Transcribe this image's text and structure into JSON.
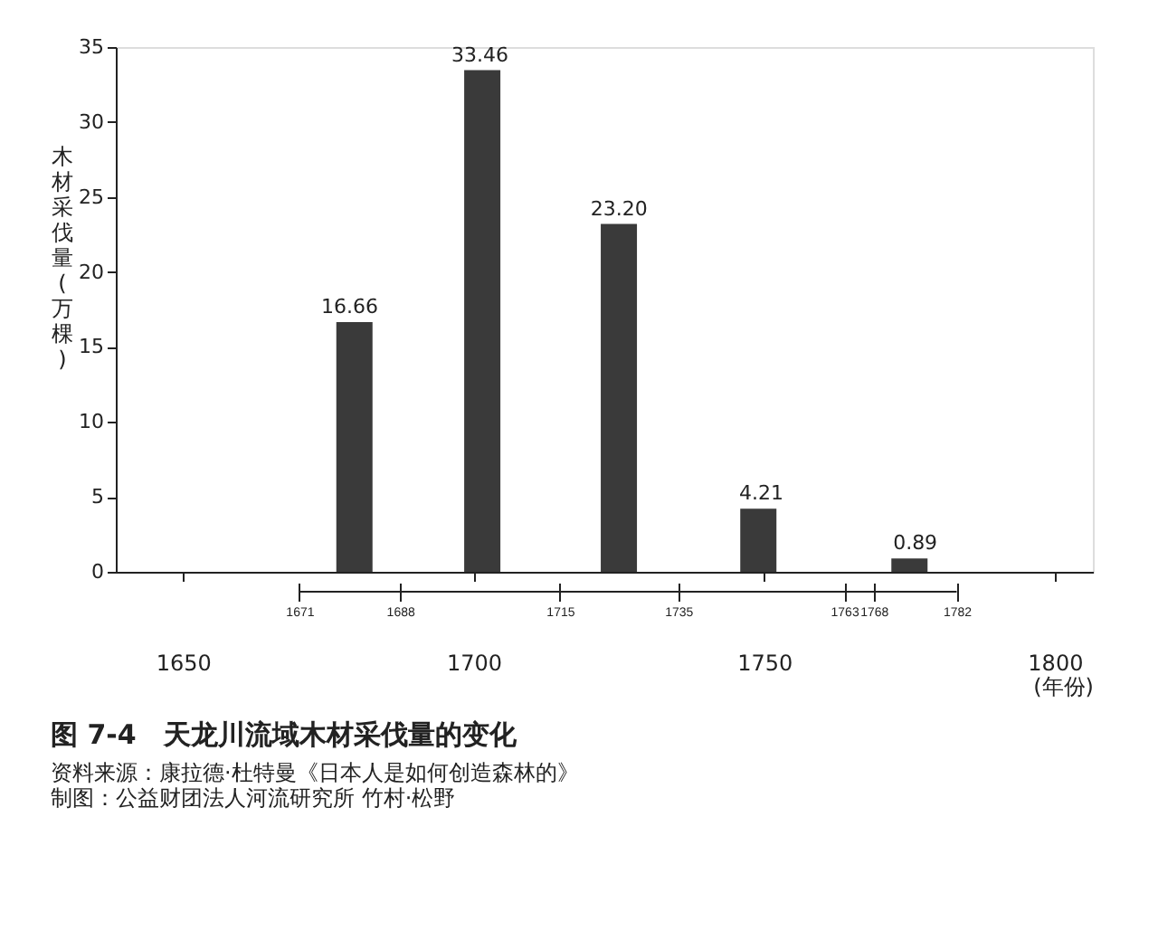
{
  "chart_data": {
    "type": "bar",
    "title": "图 7-4　天龙川流域木材采伐量的变化",
    "ylabel": "木材采伐量(万棵)",
    "xlabel": "(年份)",
    "x": [
      1679.5,
      1701.5,
      1725,
      1749,
      1775
    ],
    "values": [
      16.66,
      33.46,
      23.2,
      4.21,
      0.89
    ],
    "value_labels": [
      "16.66",
      "33.46",
      "23.20",
      "4.21",
      "0.89"
    ],
    "color": "#3a3a3a",
    "xlim": [
      1640,
      1805
    ],
    "xticks": [
      1650,
      1700,
      1750,
      1800
    ],
    "x2lim": [
      1640,
      1805
    ],
    "x2ticks": [
      1671,
      1688,
      1715,
      1735,
      1763,
      1768,
      1782
    ],
    "ylim": [
      0,
      35
    ],
    "yticks": [
      0,
      5,
      10,
      15,
      20,
      25,
      30,
      35
    ],
    "grid": false,
    "annotations": [
      "资料来源：康拉德·杜特曼《日本人是如何创造森林的》",
      "制图：公益财团法人河流研究所 竹村·松野"
    ]
  }
}
